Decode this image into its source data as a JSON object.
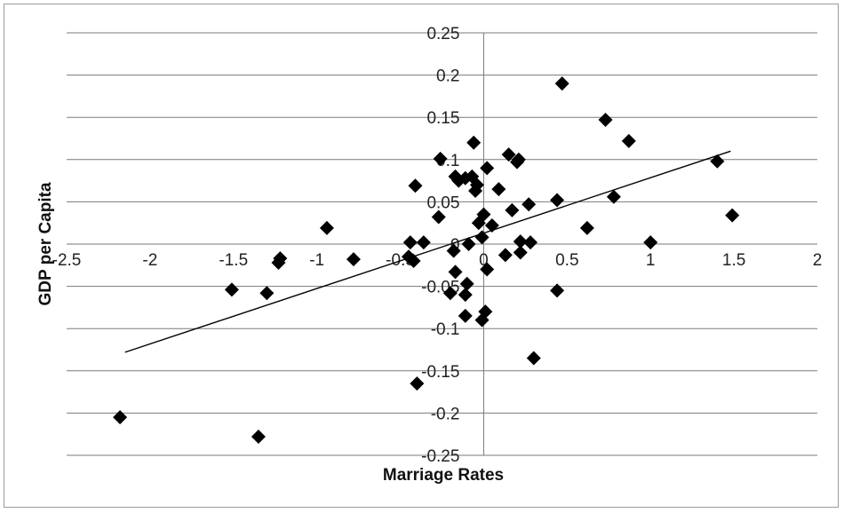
{
  "chart_data": {
    "type": "scatter",
    "title": "",
    "xlabel": "Marriage Rates",
    "ylabel": "GDP per Capita",
    "xlim": [
      -2.5,
      2
    ],
    "ylim": [
      -0.25,
      0.25
    ],
    "x_ticks": [
      -2.5,
      -2,
      -1.5,
      -1,
      -0.5,
      0,
      0.5,
      1,
      1.5,
      2
    ],
    "x_tick_labels": [
      "-2.5",
      "-2",
      "-1.5",
      "-1",
      "-0.5",
      "0",
      "0.5",
      "1",
      "1.5",
      "2"
    ],
    "y_ticks": [
      -0.25,
      -0.2,
      -0.15,
      -0.1,
      -0.05,
      0,
      0.05,
      0.1,
      0.15,
      0.2,
      0.25
    ],
    "y_tick_labels": [
      "-0.25",
      "-0.2",
      "-0.15",
      "-0.1",
      "-0.05",
      "0",
      "0.05",
      "0.1",
      "0.15",
      "0.2",
      "0.25"
    ],
    "grid": {
      "horizontal": true,
      "vertical": false
    },
    "legend": "none",
    "marker": "diamond",
    "marker_color": "#000000",
    "trendline": {
      "x": [
        -2.15,
        1.48
      ],
      "y": [
        -0.128,
        0.11
      ],
      "color": "#000000"
    },
    "points": [
      {
        "x": 0.47,
        "y": 0.19
      },
      {
        "x": 0.73,
        "y": 0.147
      },
      {
        "x": 0.87,
        "y": 0.122
      },
      {
        "x": -0.06,
        "y": 0.12
      },
      {
        "x": 0.15,
        "y": 0.106
      },
      {
        "x": 0.21,
        "y": 0.1
      },
      {
        "x": 0.2,
        "y": 0.097
      },
      {
        "x": -0.26,
        "y": 0.101
      },
      {
        "x": 1.4,
        "y": 0.098
      },
      {
        "x": 0.02,
        "y": 0.09
      },
      {
        "x": -0.07,
        "y": 0.08
      },
      {
        "x": -0.17,
        "y": 0.08
      },
      {
        "x": -0.11,
        "y": 0.078
      },
      {
        "x": -0.15,
        "y": 0.075
      },
      {
        "x": -0.04,
        "y": 0.07
      },
      {
        "x": -0.41,
        "y": 0.069
      },
      {
        "x": 0.09,
        "y": 0.065
      },
      {
        "x": -0.05,
        "y": 0.063
      },
      {
        "x": 0.78,
        "y": 0.056
      },
      {
        "x": 0.44,
        "y": 0.052
      },
      {
        "x": 0.27,
        "y": 0.047
      },
      {
        "x": 0.17,
        "y": 0.04
      },
      {
        "x": 1.49,
        "y": 0.034
      },
      {
        "x": 0.0,
        "y": 0.035
      },
      {
        "x": -0.27,
        "y": 0.032
      },
      {
        "x": -0.03,
        "y": 0.025
      },
      {
        "x": 0.05,
        "y": 0.022
      },
      {
        "x": -0.94,
        "y": 0.019
      },
      {
        "x": 0.62,
        "y": 0.019
      },
      {
        "x": -0.01,
        "y": 0.008
      },
      {
        "x": -0.44,
        "y": 0.002
      },
      {
        "x": -0.36,
        "y": 0.002
      },
      {
        "x": 1.0,
        "y": 0.002
      },
      {
        "x": 0.22,
        "y": 0.003
      },
      {
        "x": 0.28,
        "y": 0.002
      },
      {
        "x": -0.09,
        "y": 0.0
      },
      {
        "x": 0.22,
        "y": -0.01
      },
      {
        "x": 0.13,
        "y": -0.013
      },
      {
        "x": -0.45,
        "y": -0.015
      },
      {
        "x": -0.42,
        "y": -0.02
      },
      {
        "x": -0.78,
        "y": -0.018
      },
      {
        "x": -1.22,
        "y": -0.017
      },
      {
        "x": -1.23,
        "y": -0.022
      },
      {
        "x": -0.18,
        "y": -0.008
      },
      {
        "x": 0.02,
        "y": -0.03
      },
      {
        "x": -0.17,
        "y": -0.033
      },
      {
        "x": -0.1,
        "y": -0.047
      },
      {
        "x": -1.51,
        "y": -0.054
      },
      {
        "x": -1.3,
        "y": -0.058
      },
      {
        "x": -0.2,
        "y": -0.058
      },
      {
        "x": -0.11,
        "y": -0.06
      },
      {
        "x": 0.44,
        "y": -0.055
      },
      {
        "x": 0.01,
        "y": -0.08
      },
      {
        "x": -0.11,
        "y": -0.085
      },
      {
        "x": -0.01,
        "y": -0.09
      },
      {
        "x": 0.3,
        "y": -0.135
      },
      {
        "x": -0.4,
        "y": -0.165
      },
      {
        "x": -2.18,
        "y": -0.205
      },
      {
        "x": -1.35,
        "y": -0.228
      }
    ]
  }
}
